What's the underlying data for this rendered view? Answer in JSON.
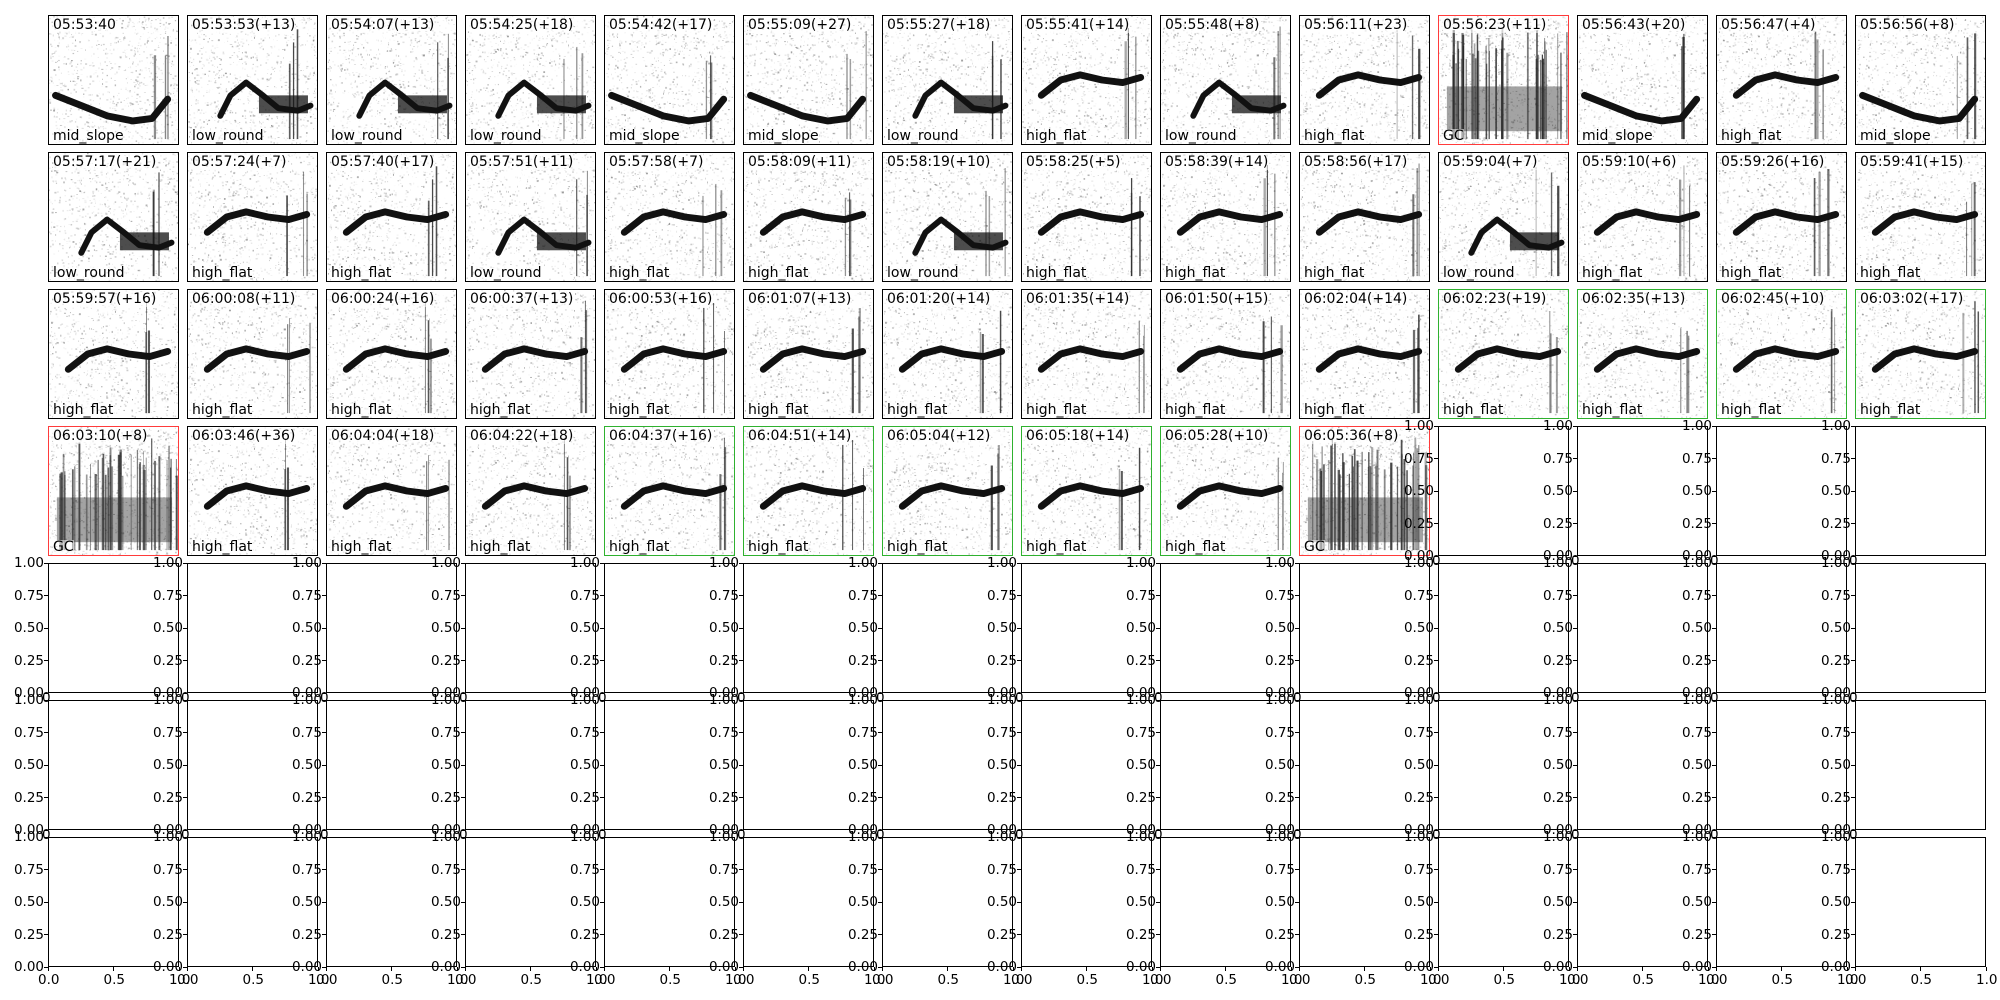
{
  "chart_data": {
    "type": "spectrogram-grid",
    "grid": {
      "rows": 7,
      "cols": 14
    },
    "panels": [
      {
        "time": "05:53:40",
        "label": "mid_slope",
        "highlight": "none",
        "shape": "slope"
      },
      {
        "time": "05:53:53(+13)",
        "label": "low_round",
        "highlight": "none",
        "shape": "round"
      },
      {
        "time": "05:54:07(+13)",
        "label": "low_round",
        "highlight": "none",
        "shape": "round"
      },
      {
        "time": "05:54:25(+18)",
        "label": "low_round",
        "highlight": "none",
        "shape": "round"
      },
      {
        "time": "05:54:42(+17)",
        "label": "mid_slope",
        "highlight": "none",
        "shape": "slope"
      },
      {
        "time": "05:55:09(+27)",
        "label": "mid_slope",
        "highlight": "none",
        "shape": "slope"
      },
      {
        "time": "05:55:27(+18)",
        "label": "low_round",
        "highlight": "none",
        "shape": "round"
      },
      {
        "time": "05:55:41(+14)",
        "label": "high_flat",
        "highlight": "none",
        "shape": "flat"
      },
      {
        "time": "05:55:48(+8)",
        "label": "low_round",
        "highlight": "none",
        "shape": "round"
      },
      {
        "time": "05:56:11(+23)",
        "label": "high_flat",
        "highlight": "none",
        "shape": "flat"
      },
      {
        "time": "05:56:23(+11)",
        "label": "GC",
        "highlight": "red",
        "shape": "gc"
      },
      {
        "time": "05:56:43(+20)",
        "label": "mid_slope",
        "highlight": "none",
        "shape": "slope"
      },
      {
        "time": "05:56:47(+4)",
        "label": "high_flat",
        "highlight": "none",
        "shape": "flat"
      },
      {
        "time": "05:56:56(+8)",
        "label": "mid_slope",
        "highlight": "none",
        "shape": "slope"
      },
      {
        "time": "05:57:17(+21)",
        "label": "low_round",
        "highlight": "none",
        "shape": "round"
      },
      {
        "time": "05:57:24(+7)",
        "label": "high_flat",
        "highlight": "none",
        "shape": "flat"
      },
      {
        "time": "05:57:40(+17)",
        "label": "high_flat",
        "highlight": "none",
        "shape": "flat"
      },
      {
        "time": "05:57:51(+11)",
        "label": "low_round",
        "highlight": "none",
        "shape": "round"
      },
      {
        "time": "05:57:58(+7)",
        "label": "high_flat",
        "highlight": "none",
        "shape": "flat"
      },
      {
        "time": "05:58:09(+11)",
        "label": "high_flat",
        "highlight": "none",
        "shape": "flat"
      },
      {
        "time": "05:58:19(+10)",
        "label": "low_round",
        "highlight": "none",
        "shape": "round"
      },
      {
        "time": "05:58:25(+5)",
        "label": "high_flat",
        "highlight": "none",
        "shape": "flat"
      },
      {
        "time": "05:58:39(+14)",
        "label": "high_flat",
        "highlight": "none",
        "shape": "flat"
      },
      {
        "time": "05:58:56(+17)",
        "label": "high_flat",
        "highlight": "none",
        "shape": "flat"
      },
      {
        "time": "05:59:04(+7)",
        "label": "low_round",
        "highlight": "none",
        "shape": "round"
      },
      {
        "time": "05:59:10(+6)",
        "label": "high_flat",
        "highlight": "none",
        "shape": "flat"
      },
      {
        "time": "05:59:26(+16)",
        "label": "high_flat",
        "highlight": "none",
        "shape": "flat"
      },
      {
        "time": "05:59:41(+15)",
        "label": "high_flat",
        "highlight": "none",
        "shape": "flat"
      },
      {
        "time": "05:59:57(+16)",
        "label": "high_flat",
        "highlight": "none",
        "shape": "flat"
      },
      {
        "time": "06:00:08(+11)",
        "label": "high_flat",
        "highlight": "none",
        "shape": "flat"
      },
      {
        "time": "06:00:24(+16)",
        "label": "high_flat",
        "highlight": "none",
        "shape": "flat"
      },
      {
        "time": "06:00:37(+13)",
        "label": "high_flat",
        "highlight": "none",
        "shape": "flat"
      },
      {
        "time": "06:00:53(+16)",
        "label": "high_flat",
        "highlight": "none",
        "shape": "flat"
      },
      {
        "time": "06:01:07(+13)",
        "label": "high_flat",
        "highlight": "none",
        "shape": "flat"
      },
      {
        "time": "06:01:20(+14)",
        "label": "high_flat",
        "highlight": "none",
        "shape": "flat"
      },
      {
        "time": "06:01:35(+14)",
        "label": "high_flat",
        "highlight": "none",
        "shape": "flat"
      },
      {
        "time": "06:01:50(+15)",
        "label": "high_flat",
        "highlight": "none",
        "shape": "flat"
      },
      {
        "time": "06:02:04(+14)",
        "label": "high_flat",
        "highlight": "none",
        "shape": "flat"
      },
      {
        "time": "06:02:23(+19)",
        "label": "high_flat",
        "highlight": "green",
        "shape": "flat"
      },
      {
        "time": "06:02:35(+13)",
        "label": "high_flat",
        "highlight": "green",
        "shape": "flat"
      },
      {
        "time": "06:02:45(+10)",
        "label": "high_flat",
        "highlight": "green",
        "shape": "flat"
      },
      {
        "time": "06:03:02(+17)",
        "label": "high_flat",
        "highlight": "green",
        "shape": "flat"
      },
      {
        "time": "06:03:10(+8)",
        "label": "GC",
        "highlight": "red",
        "shape": "gc"
      },
      {
        "time": "06:03:46(+36)",
        "label": "high_flat",
        "highlight": "none",
        "shape": "flat"
      },
      {
        "time": "06:04:04(+18)",
        "label": "high_flat",
        "highlight": "none",
        "shape": "flat"
      },
      {
        "time": "06:04:22(+18)",
        "label": "high_flat",
        "highlight": "none",
        "shape": "flat"
      },
      {
        "time": "06:04:37(+16)",
        "label": "high_flat",
        "highlight": "green",
        "shape": "flat"
      },
      {
        "time": "06:04:51(+14)",
        "label": "high_flat",
        "highlight": "green",
        "shape": "flat"
      },
      {
        "time": "06:05:04(+12)",
        "label": "high_flat",
        "highlight": "green",
        "shape": "flat"
      },
      {
        "time": "06:05:18(+14)",
        "label": "high_flat",
        "highlight": "green",
        "shape": "flat"
      },
      {
        "time": "06:05:28(+10)",
        "label": "high_flat",
        "highlight": "green",
        "shape": "flat"
      },
      {
        "time": "06:05:36(+8)",
        "label": "GC",
        "highlight": "red",
        "shape": "gc"
      }
    ],
    "empty_axes": {
      "xlim": [
        0,
        1
      ],
      "ylim": [
        0,
        1
      ],
      "yticks": [
        "0.00",
        "0.25",
        "0.50",
        "0.75",
        "1.00"
      ],
      "xticks": [
        "0.0",
        "0.5",
        "1.0"
      ]
    }
  }
}
